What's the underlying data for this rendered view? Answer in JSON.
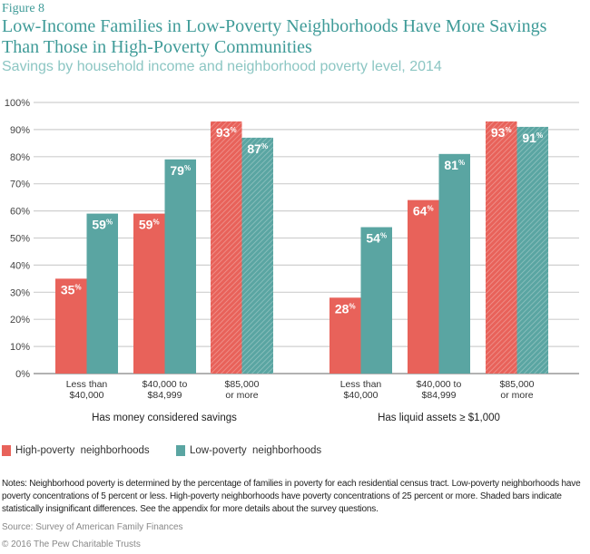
{
  "figure_label": "Figure 8",
  "chart_data": {
    "type": "bar",
    "title": "Low-Income Families in Low-Poverty Neighborhoods Have More Savings Than Those in High-Poverty Communities",
    "subtitle": "Savings by household income and neighborhood poverty level, 2014",
    "ylim": [
      0,
      100
    ],
    "yticks": [
      "0%",
      "10%",
      "20%",
      "30%",
      "40%",
      "50%",
      "60%",
      "70%",
      "80%",
      "90%",
      "100%"
    ],
    "grid": true,
    "legend_placement": "bottom-left",
    "colors": {
      "high": "#e8625a",
      "low": "#5aa5a2"
    },
    "panels": [
      {
        "label": "Has money considered savings",
        "categories": [
          "Less than\n$40,000",
          "$40,000 to\n$84,999",
          "$85,000\nor more"
        ],
        "series": [
          {
            "name": "High-poverty  neighborhoods",
            "values": [
              35,
              59,
              93
            ]
          },
          {
            "name": "Low-poverty  neighborhoods",
            "values": [
              59,
              79,
              87
            ]
          }
        ],
        "shaded": [
          false,
          false,
          true
        ]
      },
      {
        "label": "Has liquid assets ≥ $1,000",
        "categories": [
          "Less than\n$40,000",
          "$40,000 to\n$84,999",
          "$85,000\nor more"
        ],
        "series": [
          {
            "name": "High-poverty  neighborhoods",
            "values": [
              28,
              64,
              93
            ]
          },
          {
            "name": "Low-poverty  neighborhoods",
            "values": [
              54,
              81,
              91
            ]
          }
        ],
        "shaded": [
          false,
          false,
          true
        ]
      }
    ]
  },
  "legend": [
    {
      "label": "High-poverty  neighborhoods",
      "color": "#e8625a"
    },
    {
      "label": "Low-poverty  neighborhoods",
      "color": "#5aa5a2"
    }
  ],
  "notes": "Notes: Neighborhood poverty is determined by the percentage of families in poverty for each residential census tract. Low-poverty neighborhoods have poverty concentrations of 5 percent or less. High-poverty neighborhoods have poverty concentrations of 25 percent or more. Shaded bars indicate statistically insignificant differences. See the appendix for more details about the survey questions.",
  "source": "Source: Survey of American Family Finances",
  "copyright": "© 2016 The Pew Charitable Trusts"
}
